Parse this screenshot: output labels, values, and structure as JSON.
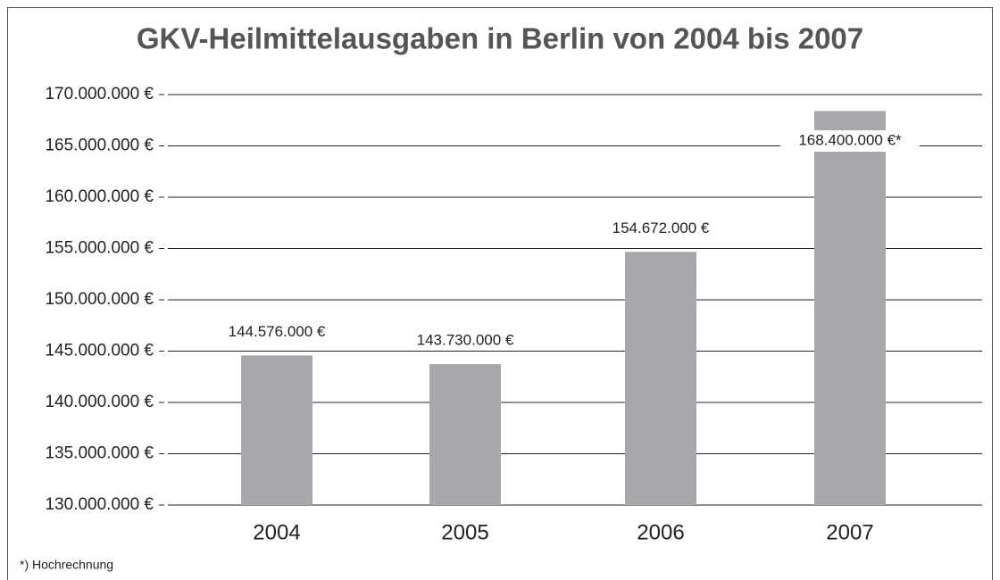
{
  "chart_data": {
    "type": "bar",
    "title": "GKV-Heilmittelausgaben in Berlin von 2004 bis 2007",
    "categories": [
      "2004",
      "2005",
      "2006",
      "2007"
    ],
    "values": [
      144576000,
      143730000,
      154672000,
      168400000
    ],
    "value_labels": [
      "144.576.000 €",
      "143.730.000 €",
      "154.672.000 €",
      "168.400.000 €*"
    ],
    "color": "#a7a8ab",
    "ylim": [
      130000000,
      170000000
    ],
    "yticks": [
      {
        "value": 130000000,
        "label": "130.000.000 €"
      },
      {
        "value": 135000000,
        "label": "135.000.000 €"
      },
      {
        "value": 140000000,
        "label": "140.000.000 €"
      },
      {
        "value": 145000000,
        "label": "145.000.000 €"
      },
      {
        "value": 150000000,
        "label": "150.000.000 €"
      },
      {
        "value": 155000000,
        "label": "155.000.000 €"
      },
      {
        "value": 160000000,
        "label": "160.000.000 €"
      },
      {
        "value": 165000000,
        "label": "165.000.000 €"
      },
      {
        "value": 170000000,
        "label": "170.000.000 €"
      }
    ],
    "grid": true,
    "footnote": "*) Hochrechnung"
  }
}
